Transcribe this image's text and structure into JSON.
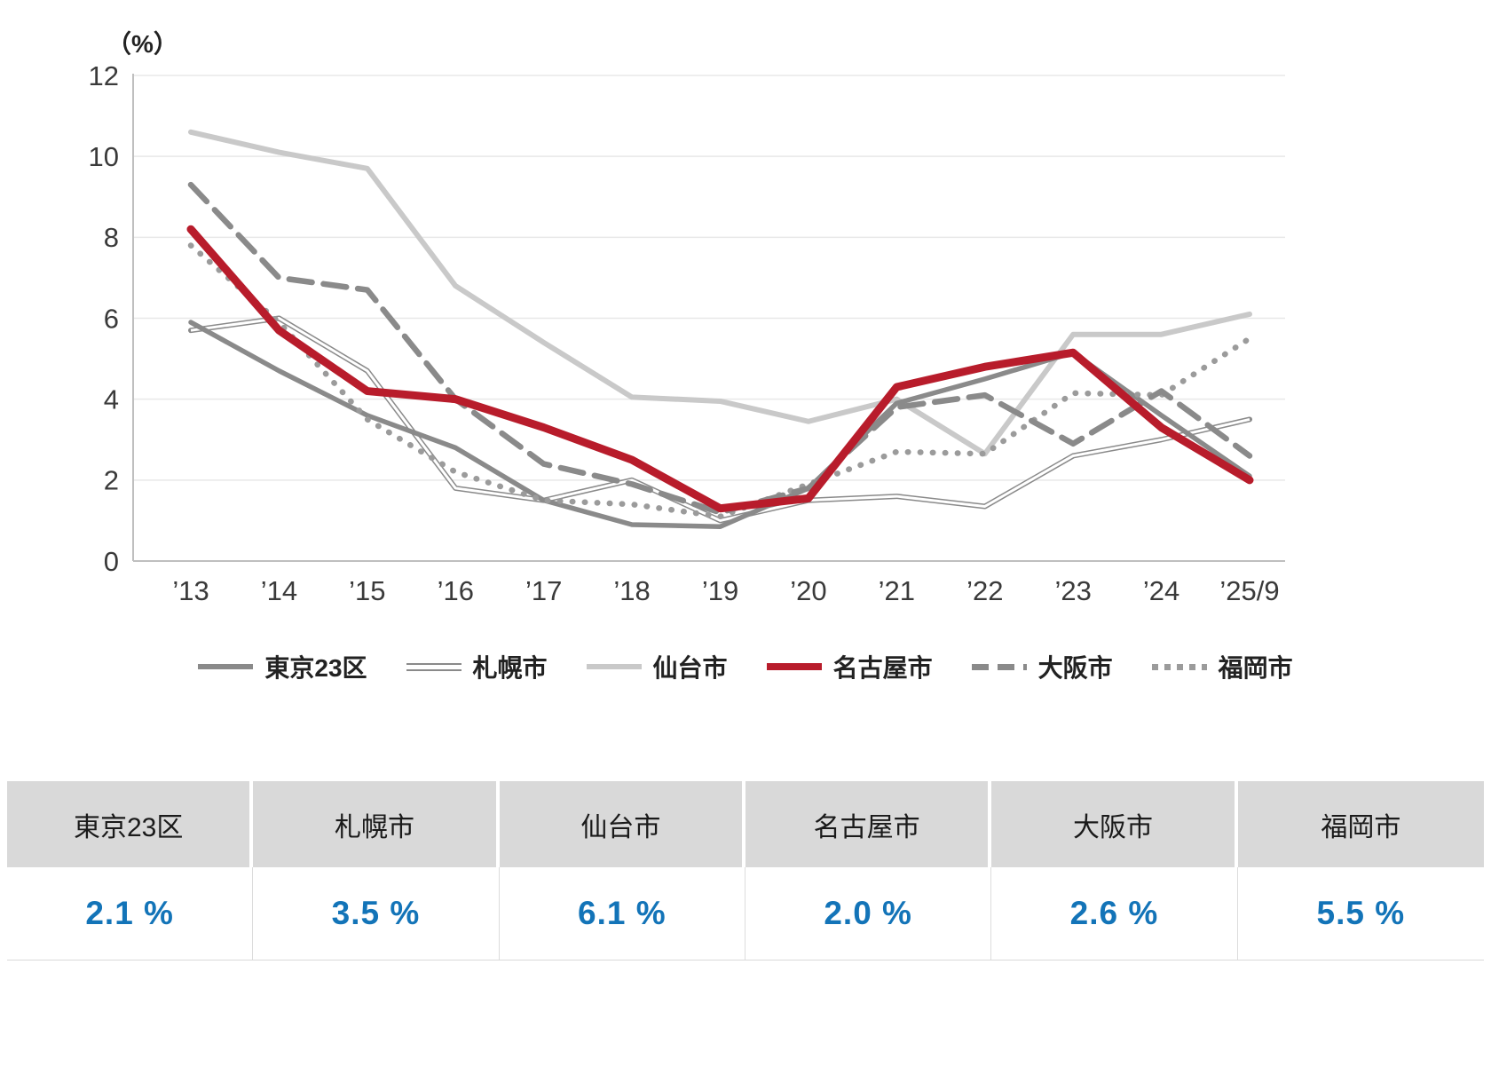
{
  "chart_data": {
    "type": "line",
    "title": "",
    "ylabel": "（%）",
    "xlabel": "",
    "ylim": [
      0,
      12
    ],
    "y_ticks": [
      0,
      2,
      4,
      6,
      8,
      10,
      12
    ],
    "grid": true,
    "legend_position": "bottom",
    "categories": [
      "’13",
      "’14",
      "’15",
      "’16",
      "’17",
      "’18",
      "’19",
      "’20",
      "’21",
      "’22",
      "’23",
      "’24",
      "’25/9"
    ],
    "series": [
      {
        "name": "東京23区",
        "key": "tokyo23",
        "style": "solid",
        "color": "#8a8a8a",
        "width": 5.5,
        "values": [
          5.9,
          4.7,
          3.6,
          2.8,
          1.5,
          0.9,
          0.85,
          1.8,
          3.9,
          4.5,
          5.15,
          3.6,
          2.1
        ]
      },
      {
        "name": "札幌市",
        "key": "sapporo",
        "style": "double",
        "color": "#8a8a8a",
        "width": 6,
        "values": [
          5.7,
          6.0,
          4.7,
          1.8,
          1.5,
          2.0,
          1.0,
          1.5,
          1.6,
          1.35,
          2.6,
          3.0,
          3.5
        ]
      },
      {
        "name": "仙台市",
        "key": "sendai",
        "style": "solid",
        "color": "#c9c9c9",
        "width": 6,
        "values": [
          10.6,
          10.1,
          9.7,
          6.8,
          5.4,
          4.05,
          3.95,
          3.45,
          4.0,
          2.65,
          5.6,
          5.6,
          6.1
        ]
      },
      {
        "name": "名古屋市",
        "key": "nagoya",
        "style": "solid",
        "color": "#b81c2b",
        "width": 9,
        "values": [
          8.2,
          5.7,
          4.2,
          4.0,
          3.3,
          2.5,
          1.3,
          1.55,
          4.3,
          4.8,
          5.15,
          3.3,
          2.0
        ]
      },
      {
        "name": "大阪市",
        "key": "osaka",
        "style": "dashed",
        "color": "#8a8a8a",
        "width": 6.5,
        "values": [
          9.3,
          7.0,
          6.7,
          4.0,
          2.4,
          1.9,
          1.2,
          1.8,
          3.8,
          4.1,
          2.9,
          4.2,
          2.6
        ]
      },
      {
        "name": "福岡市",
        "key": "fukuoka",
        "style": "dotted",
        "color": "#9b9b9b",
        "width": 6.5,
        "values": [
          7.8,
          5.9,
          3.5,
          2.2,
          1.5,
          1.4,
          1.1,
          1.9,
          2.7,
          2.65,
          4.15,
          4.1,
          5.5
        ]
      }
    ]
  },
  "summary_table": {
    "header_bg": "#d9d9d9",
    "value_color": "#1374b8",
    "columns": [
      {
        "city": "東京23区",
        "value": "2.1 %"
      },
      {
        "city": "札幌市",
        "value": "3.5 %"
      },
      {
        "city": "仙台市",
        "value": "6.1 %"
      },
      {
        "city": "名古屋市",
        "value": "2.0 %"
      },
      {
        "city": "大阪市",
        "value": "2.6 %"
      },
      {
        "city": "福岡市",
        "value": "5.5 %"
      }
    ]
  }
}
